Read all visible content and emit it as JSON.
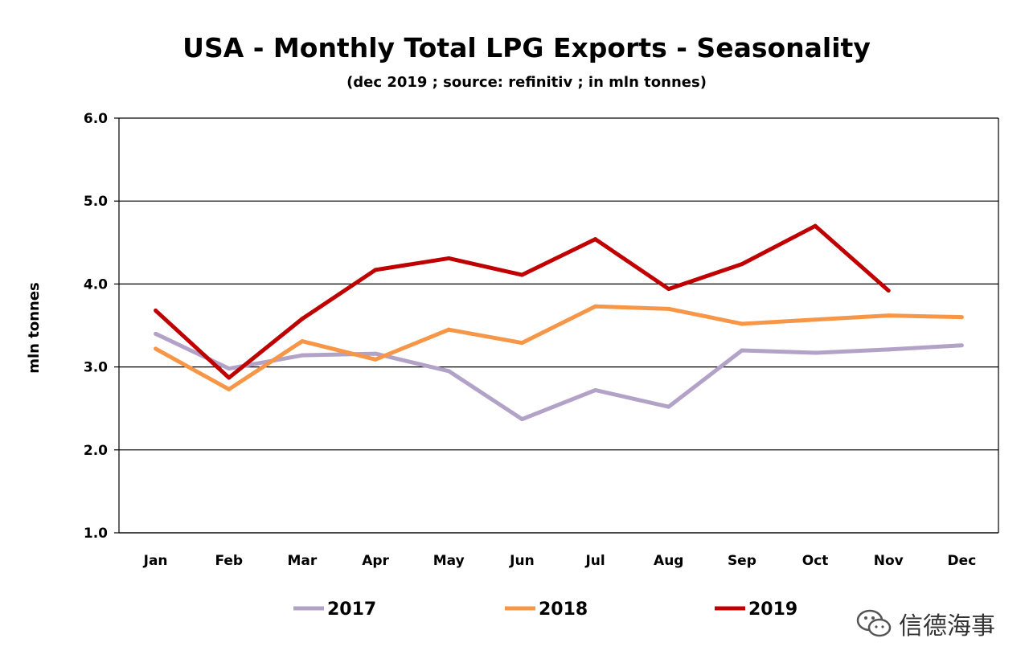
{
  "chart_data": {
    "type": "line",
    "title": "USA - Monthly Total LPG Exports - Seasonality",
    "subtitle": "(dec 2019 ; source: refinitiv ; in mln tonnes)",
    "xlabel": "",
    "ylabel": "mln tonnes",
    "ylim": [
      1.0,
      6.0
    ],
    "yticks": [
      "1.0",
      "2.0",
      "3.0",
      "4.0",
      "5.0",
      "6.0"
    ],
    "grid": true,
    "legend_position": "bottom",
    "categories": [
      "Jan",
      "Feb",
      "Mar",
      "Apr",
      "May",
      "Jun",
      "Jul",
      "Aug",
      "Sep",
      "Oct",
      "Nov",
      "Dec"
    ],
    "series": [
      {
        "name": "2017",
        "color": "#B3A2C7",
        "values": [
          3.4,
          2.98,
          3.14,
          3.16,
          2.95,
          2.37,
          2.72,
          2.52,
          3.2,
          3.17,
          3.21,
          3.26
        ]
      },
      {
        "name": "2018",
        "color": "#F79646",
        "values": [
          3.22,
          2.73,
          3.31,
          3.09,
          3.45,
          3.29,
          3.73,
          3.7,
          3.52,
          3.57,
          3.62,
          3.6
        ]
      },
      {
        "name": "2019",
        "color": "#C00000",
        "values": [
          3.68,
          2.87,
          3.58,
          4.17,
          4.31,
          4.11,
          4.54,
          3.94,
          4.24,
          4.7,
          3.92,
          null
        ]
      }
    ]
  },
  "watermark": {
    "text": "信德海事",
    "icon": "wechat-icon"
  }
}
